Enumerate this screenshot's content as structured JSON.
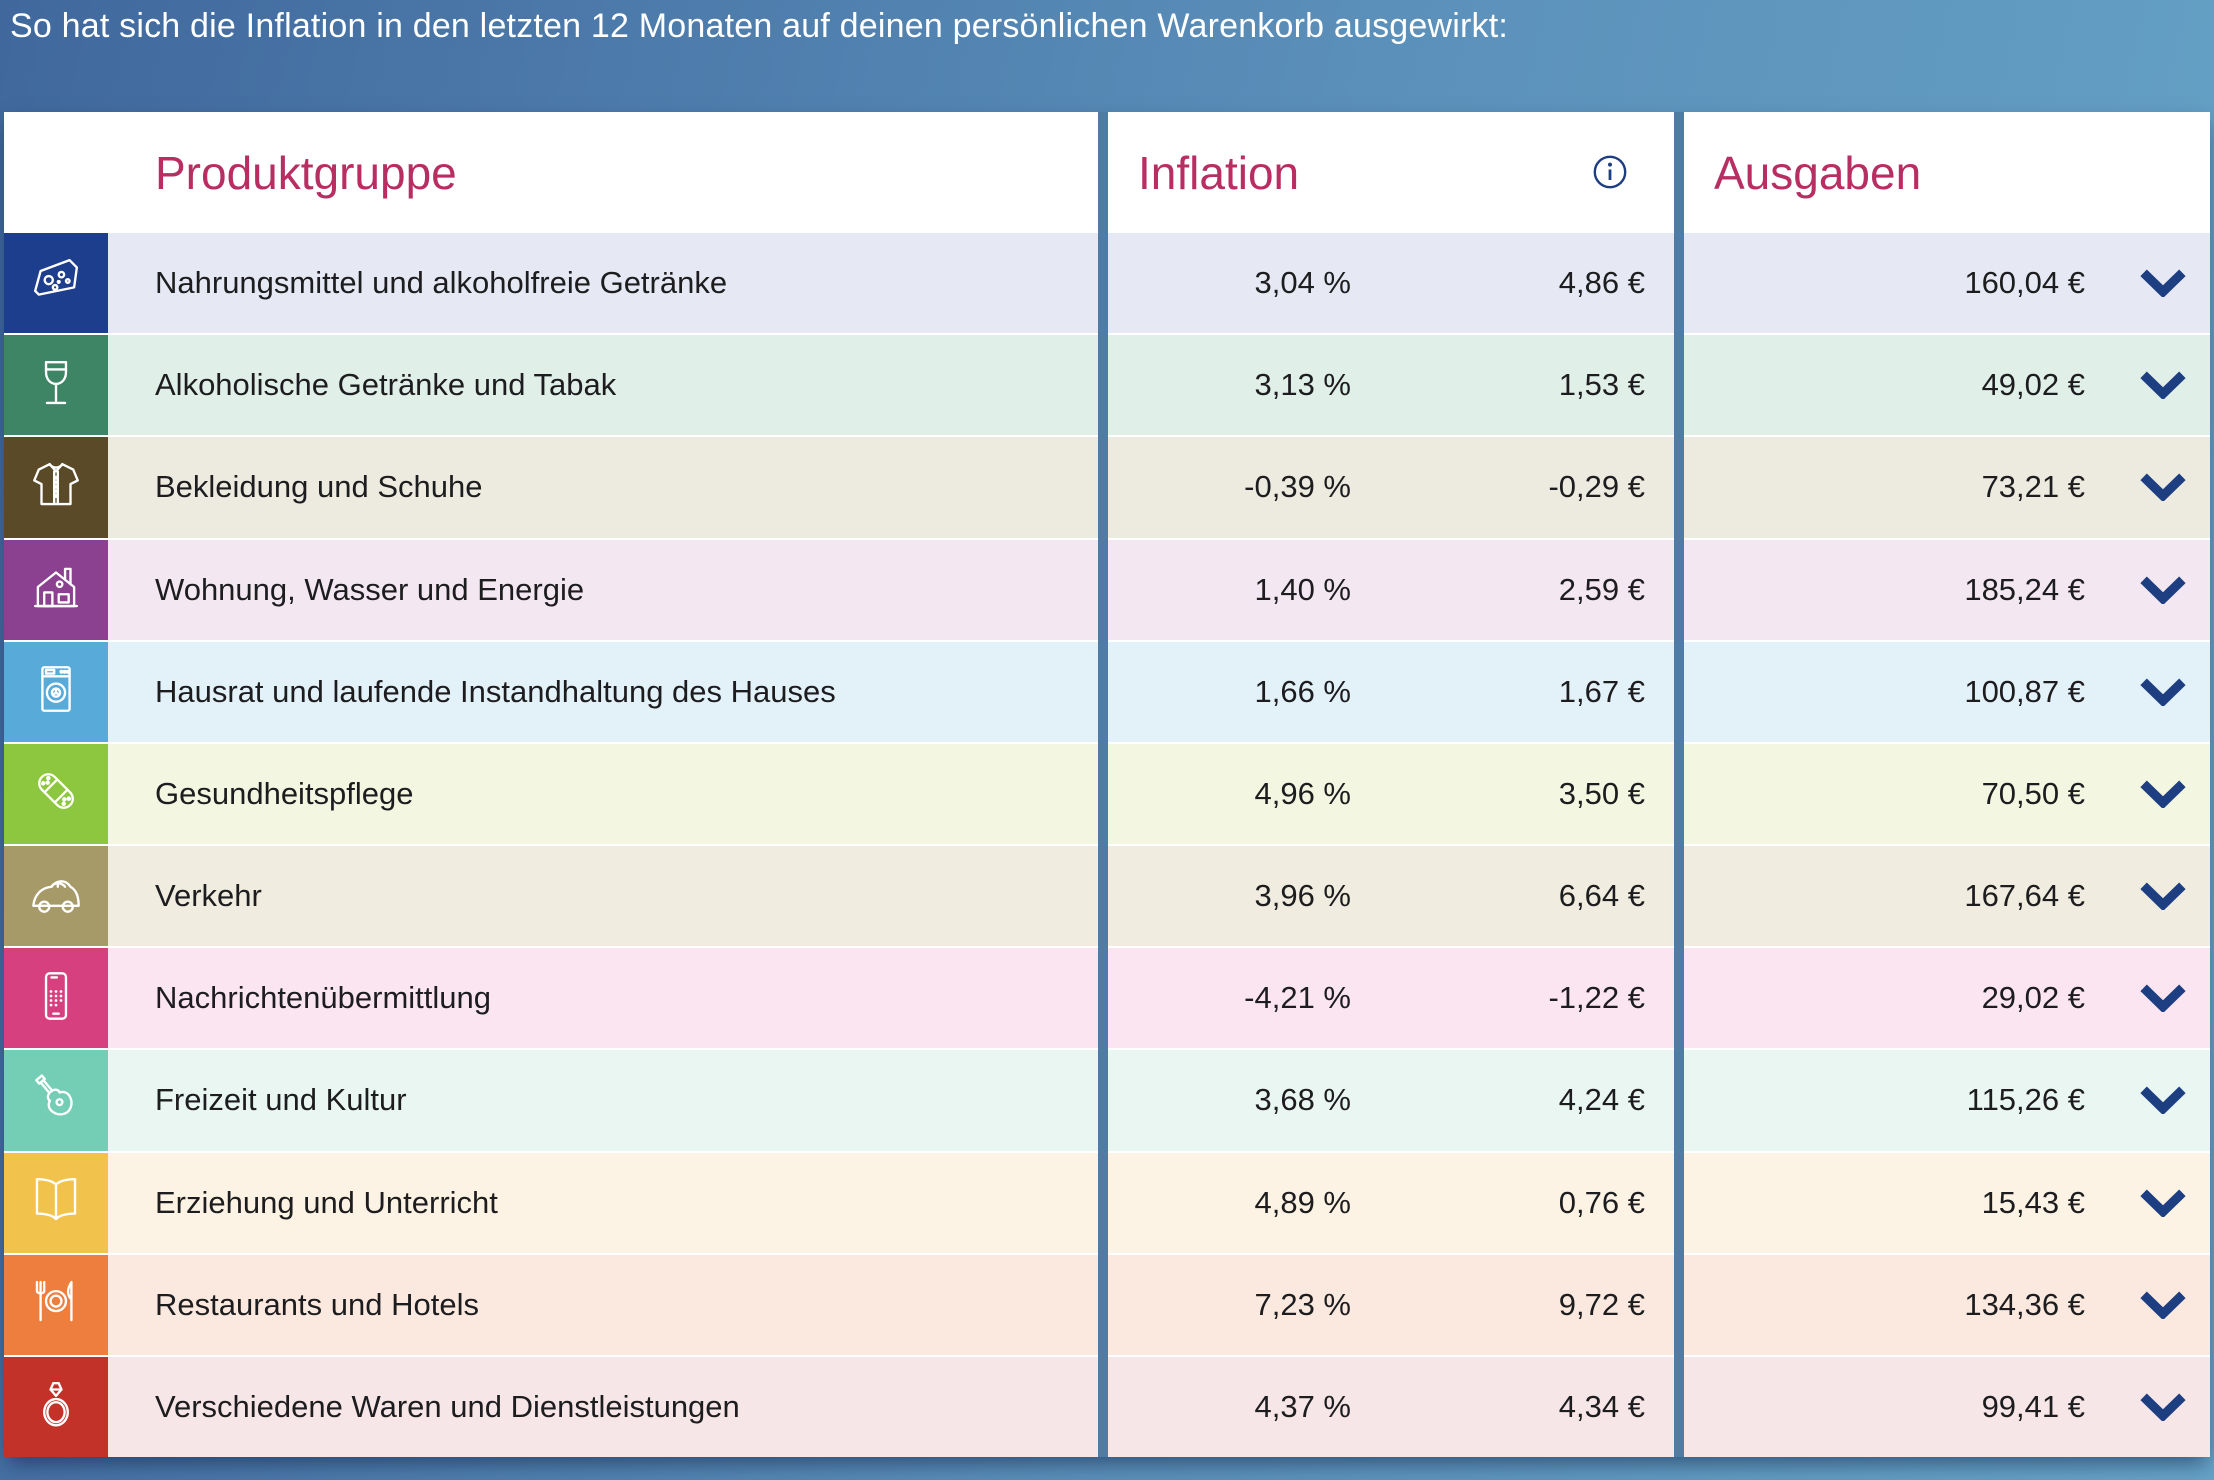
{
  "title": "So hat sich die Inflation in den letzten 12 Monaten auf deinen persönlichen Warenkorb ausgewirkt:",
  "colors": {
    "accent_header": "#b82e62",
    "navy_icon": "#1e3e82",
    "divider": "#4f7ca7",
    "background_gradient_left": "#40689d",
    "background_gradient_right": "#66a3c7",
    "text": "#1d1d1f"
  },
  "table": {
    "columns": {
      "product_group": "Produktgruppe",
      "inflation": "Inflation",
      "expenses": "Ausgaben"
    },
    "info_icon": "info-icon",
    "rows": [
      {
        "label": "Nahrungsmittel und alkoholfreie Getränke",
        "icon": "cheese-icon",
        "tile_color": "#1d3d8d",
        "row_color": "#e6e9f4",
        "inflation_pct": "3,04 %",
        "inflation_eur": "4,86 €",
        "expenses": "160,04 €"
      },
      {
        "label": "Alkoholische Getränke und Tabak",
        "icon": "wine-glass-icon",
        "tile_color": "#3e8565",
        "row_color": "#e1efe9",
        "inflation_pct": "3,13 %",
        "inflation_eur": "1,53 €",
        "expenses": "49,02 €"
      },
      {
        "label": "Bekleidung und Schuhe",
        "icon": "shirt-icon",
        "tile_color": "#5a4a28",
        "row_color": "#edebe0",
        "inflation_pct": "-0,39 %",
        "inflation_eur": "-0,29 €",
        "expenses": "73,21 €"
      },
      {
        "label": "Wohnung, Wasser und Energie",
        "icon": "house-icon",
        "tile_color": "#8b4190",
        "row_color": "#f3e7f1",
        "inflation_pct": "1,40 %",
        "inflation_eur": "2,59 €",
        "expenses": "185,24 €"
      },
      {
        "label": "Hausrat und laufende Instandhaltung des Hauses",
        "icon": "washing-machine-icon",
        "tile_color": "#58abd9",
        "row_color": "#e3f1f9",
        "inflation_pct": "1,66 %",
        "inflation_eur": "1,67 €",
        "expenses": "100,87 €"
      },
      {
        "label": "Gesundheitspflege",
        "icon": "band-aid-icon",
        "tile_color": "#8dc63f",
        "row_color": "#f3f7e2",
        "inflation_pct": "4,96 %",
        "inflation_eur": "3,50 €",
        "expenses": "70,50 €"
      },
      {
        "label": "Verkehr",
        "icon": "car-icon",
        "tile_color": "#a79a69",
        "row_color": "#f0ecdf",
        "inflation_pct": "3,96 %",
        "inflation_eur": "6,64 €",
        "expenses": "167,64 €"
      },
      {
        "label": "Nachrichtenübermittlung",
        "icon": "smartphone-icon",
        "tile_color": "#d6407f",
        "row_color": "#fae5f1",
        "inflation_pct": "-4,21 %",
        "inflation_eur": "-1,22 €",
        "expenses": "29,02 €"
      },
      {
        "label": "Freizeit und Kultur",
        "icon": "guitar-icon",
        "tile_color": "#74cdb5",
        "row_color": "#e9f6f2",
        "inflation_pct": "3,68 %",
        "inflation_eur": "4,24 €",
        "expenses": "115,26 €"
      },
      {
        "label": "Erziehung und Unterricht",
        "icon": "book-icon",
        "tile_color": "#f1c34d",
        "row_color": "#fdf3e4",
        "inflation_pct": "4,89 %",
        "inflation_eur": "0,76 €",
        "expenses": "15,43 €"
      },
      {
        "label": "Restaurants und Hotels",
        "icon": "restaurant-icon",
        "tile_color": "#ee7e3d",
        "row_color": "#fbe9df",
        "inflation_pct": "7,23 %",
        "inflation_eur": "9,72 €",
        "expenses": "134,36 €"
      },
      {
        "label": "Verschiedene Waren und Dienstleistungen",
        "icon": "ring-icon",
        "tile_color": "#c23228",
        "row_color": "#f7e6e7",
        "inflation_pct": "4,37 %",
        "inflation_eur": "4,34 €",
        "expenses": "99,41 €"
      }
    ]
  }
}
